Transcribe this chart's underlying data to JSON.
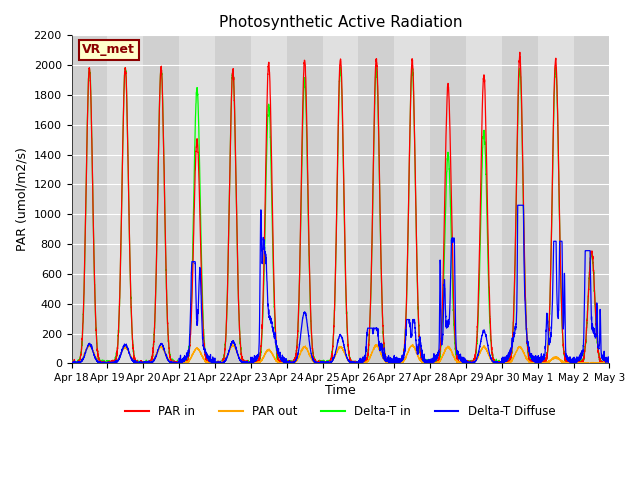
{
  "title": "Photosynthetic Active Radiation",
  "ylabel": "PAR (umol/m2/s)",
  "xlabel": "Time",
  "annotation": "VR_met",
  "ylim": [
    0,
    2200
  ],
  "yticks": [
    0,
    200,
    400,
    600,
    800,
    1000,
    1200,
    1400,
    1600,
    1800,
    2000,
    2200
  ],
  "xtick_labels": [
    "Apr 18",
    "Apr 19",
    "Apr 20",
    "Apr 21",
    "Apr 22",
    "Apr 23",
    "Apr 24",
    "Apr 25",
    "Apr 26",
    "Apr 27",
    "Apr 28",
    "Apr 29",
    "Apr 30",
    "May 1",
    "May 2",
    "May 3"
  ],
  "legend_labels": [
    "PAR in",
    "PAR out",
    "Delta-T in",
    "Delta-T Diffuse"
  ],
  "legend_colors": [
    "red",
    "orange",
    "lime",
    "blue"
  ],
  "bg_dark": "#d8d8d8",
  "bg_light": "#e8e8e8",
  "grid_color": "#cccccc",
  "n_days": 15,
  "points_per_day": 288,
  "par_in_peaks": [
    1980,
    1980,
    1980,
    1490,
    1960,
    2010,
    2030,
    2040,
    2040,
    2030,
    1870,
    1930,
    2060,
    2040,
    750
  ],
  "par_out_peaks": [
    120,
    110,
    110,
    100,
    120,
    90,
    110,
    110,
    120,
    120,
    110,
    110,
    110,
    40,
    0
  ],
  "delta_t_peaks": [
    1980,
    1980,
    1975,
    1840,
    1960,
    1730,
    1900,
    1980,
    1975,
    1975,
    1400,
    1560,
    1980,
    1980,
    740
  ],
  "delta_td_peaks": [
    125,
    120,
    125,
    650,
    140,
    980,
    340,
    185,
    225,
    280,
    800,
    210,
    1010,
    780,
    720
  ],
  "cloudy_days": [
    3,
    5,
    8,
    9,
    10,
    12,
    13,
    14
  ]
}
